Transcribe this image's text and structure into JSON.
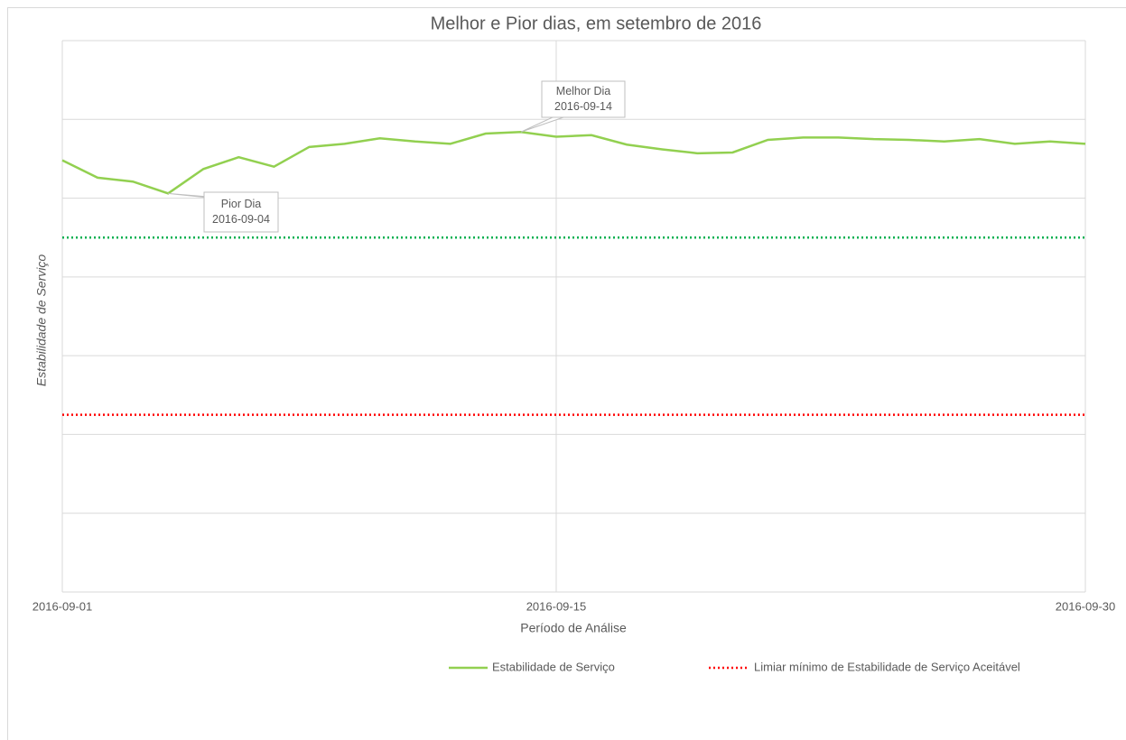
{
  "chart_data": {
    "type": "line",
    "title": "Melhor e Pior dias, em setembro de 2016",
    "x_label": "Período de Análise",
    "y_label": "Estabilidade de Serviço",
    "x": [
      "2016-09-01",
      "2016-09-02",
      "2016-09-03",
      "2016-09-04",
      "2016-09-05",
      "2016-09-06",
      "2016-09-07",
      "2016-09-08",
      "2016-09-09",
      "2016-09-10",
      "2016-09-11",
      "2016-09-12",
      "2016-09-13",
      "2016-09-14",
      "2016-09-15",
      "2016-09-16",
      "2016-09-17",
      "2016-09-18",
      "2016-09-19",
      "2016-09-20",
      "2016-09-21",
      "2016-09-22",
      "2016-09-23",
      "2016-09-24",
      "2016-09-25",
      "2016-09-26",
      "2016-09-27",
      "2016-09-28",
      "2016-09-29",
      "2016-09-30"
    ],
    "series": [
      {
        "name": "Estabilidade de Serviço",
        "color": "#92d050",
        "values": [
          5.48,
          5.26,
          5.21,
          5.06,
          5.37,
          5.52,
          5.4,
          5.65,
          5.69,
          5.76,
          5.72,
          5.69,
          5.82,
          5.84,
          5.78,
          5.8,
          5.68,
          5.62,
          5.57,
          5.58,
          5.74,
          5.77,
          5.77,
          5.75,
          5.74,
          5.72,
          5.75,
          5.69,
          5.72,
          5.69
        ]
      }
    ],
    "reference_lines": [
      {
        "value": 4.5,
        "color": "#00b050"
      },
      {
        "name": "Limiar mínimo de Estabilidade de Serviço Aceitável",
        "value": 2.25,
        "color": "#ff0000"
      }
    ],
    "annotations": [
      {
        "lines": [
          "Melhor Dia",
          "2016-09-14"
        ],
        "x": "2016-09-14"
      },
      {
        "lines": [
          "Pior Dia",
          "2016-09-04"
        ],
        "x": "2016-09-04"
      }
    ],
    "xlim": [
      "2016-09-01",
      "2016-09-30"
    ],
    "xticks": [
      "2016-09-01",
      "2016-09-15",
      "2016-09-30"
    ],
    "ylim": [
      0,
      7
    ],
    "yticks": [
      0,
      1,
      2,
      3,
      4,
      5,
      6,
      7
    ],
    "show_ytick_labels": false,
    "grid": true,
    "legend": "bottom"
  }
}
